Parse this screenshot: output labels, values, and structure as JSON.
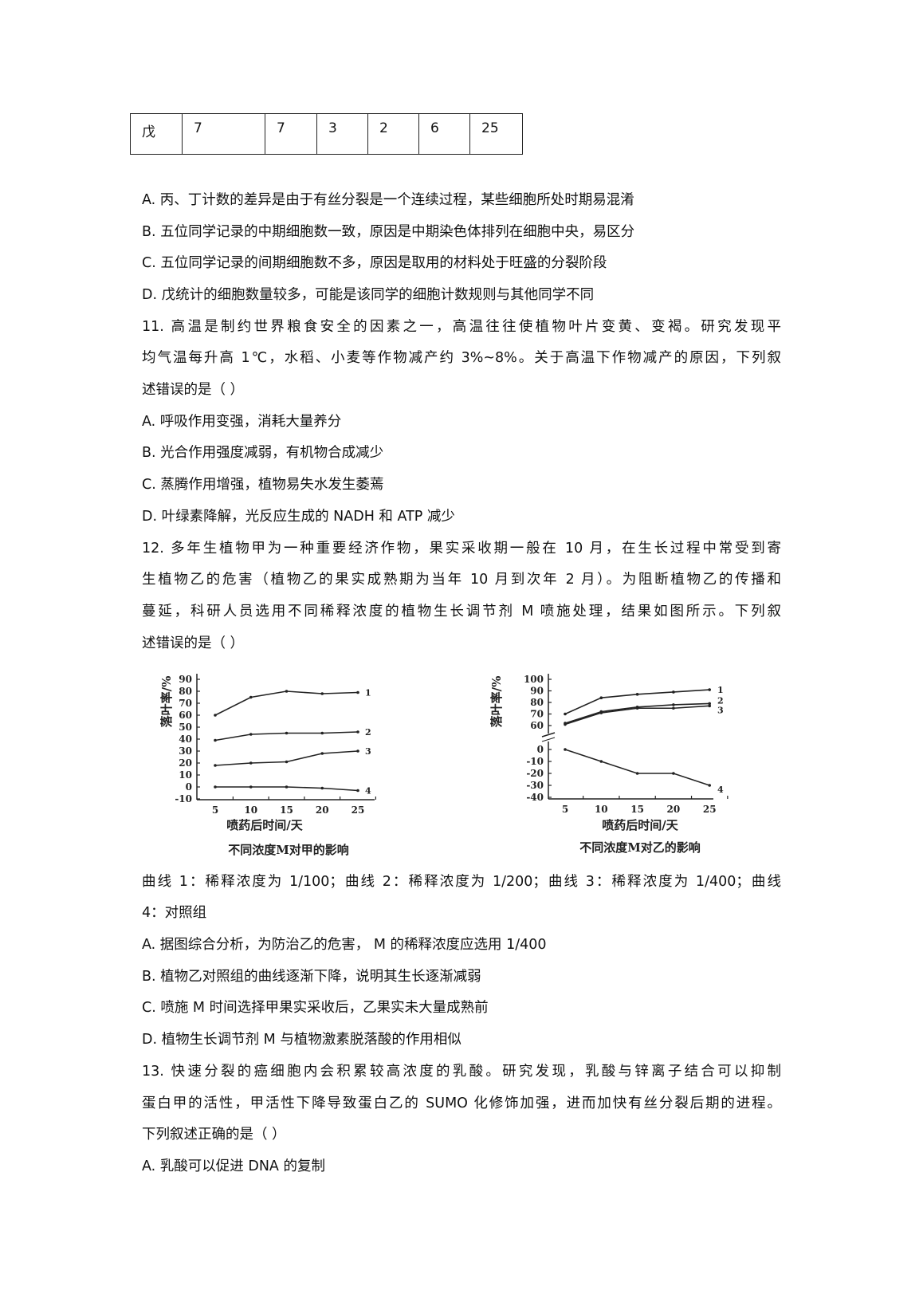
{
  "table_row": [
    "戊",
    "7",
    "7",
    "3",
    "2",
    "6",
    "25"
  ],
  "lines": [
    "A.  丙、丁计数的差异是由于有丝分裂是一个连续过程，某些细胞所处时期易混淆",
    "B.  五位同学记录的中期细胞数一致，原因是中期染色体排列在细胞中央，易区分",
    "C.  五位同学记录的间期细胞数不多，原因是取用的材料处于旺盛的分裂阶段",
    "D.  戊统计的细胞数量较多，可能是该同学的细胞计数规则与其他同学不同",
    "11.  高温是制约世界粮食安全的因素之一，高温往往使植物叶片变黄、变褐。研究发现平",
    "均气温每升高 1℃，水稻、小麦等作物减产约 3%~8%。关于高温下作物减产的原因，下列叙",
    "述错误的是（      ）",
    "A.  呼吸作用变强，消耗大量养分",
    "B.  光合作用强度减弱，有机物合成减少",
    "C.  蒸腾作用增强，植物易失水发生萎蔫",
    "D.  叶绿素降解，光反应生成的 NADH 和 ATP 减少",
    "12.  多年生植物甲为一种重要经济作物，果实采收期一般在  10 月，在生长过程中常受到寄",
    "生植物乙的危害（植物乙的果实成熟期为当年  10 月到次年 2 月）。为阻断植物乙的传播和",
    "蔓延，科研人员选用不同稀释浓度的植物生长调节剂  M 喷施处理，结果如图所示。下列叙",
    "述错误的是（      ）",
    "曲线 1：稀释浓度为 1/100；曲线 2：稀释浓度为 1/200；曲线 3：稀释浓度为 1/400；曲线",
    "4：对照组",
    "A.  据图综合分析，为防治乙的危害，  M 的稀释浓度应选用 1/400",
    "B.  植物乙对照组的曲线逐渐下降，说明其生长逐渐减弱",
    "C.  喷施 M 时间选择甲果实采收后，乙果实未大量成熟前",
    "D.  植物生长调节剂 M 与植物激素脱落酸的作用相似",
    "13.  快速分裂的癌细胞内会积累较高浓度的乳酸。研究发现，乳酸与锌离子结合可以抑制",
    "蛋白甲的活性，甲活性下降导致蛋白乙的  SUMO 化修饰加强，进而加快有丝分裂后期的进程。",
    "下列叙述正确的是（      ）",
    "A.  乳酸可以促进 DNA 的复制"
  ],
  "chart_data": [
    {
      "type": "line",
      "title": "不同浓度M对甲的影响",
      "xlabel": "喷药后时间/天",
      "ylabel": "落叶率/%",
      "x": [
        5,
        10,
        15,
        20,
        25
      ],
      "yticks": [
        90,
        80,
        70,
        60,
        50,
        40,
        30,
        20,
        10,
        0,
        -10
      ],
      "ylim": [
        -10,
        90
      ],
      "series": [
        {
          "name": "1",
          "values": [
            60,
            75,
            80,
            78,
            79
          ]
        },
        {
          "name": "2",
          "values": [
            39,
            44,
            45,
            45,
            46
          ]
        },
        {
          "name": "3",
          "values": [
            18,
            20,
            21,
            28,
            30
          ]
        },
        {
          "name": "4",
          "values": [
            0,
            0,
            0,
            -1,
            -3
          ]
        }
      ]
    },
    {
      "type": "line",
      "title": "不同浓度M对乙的影响",
      "xlabel": "喷药后时间/天",
      "ylabel": "落叶率/%",
      "x": [
        5,
        10,
        15,
        20,
        25
      ],
      "yticks": [
        100,
        90,
        80,
        70,
        60,
        0,
        -10,
        -20,
        -30,
        -40
      ],
      "ylim": [
        -40,
        100
      ],
      "axis_break": [
        0,
        60
      ],
      "series": [
        {
          "name": "1",
          "values": [
            70,
            84,
            87,
            89,
            91
          ]
        },
        {
          "name": "2",
          "values": [
            62,
            72,
            76,
            78,
            79
          ]
        },
        {
          "name": "3",
          "values": [
            61,
            71,
            75,
            75,
            77
          ]
        },
        {
          "name": "4",
          "values": [
            0,
            -10,
            -20,
            -20,
            -30
          ]
        }
      ]
    }
  ]
}
